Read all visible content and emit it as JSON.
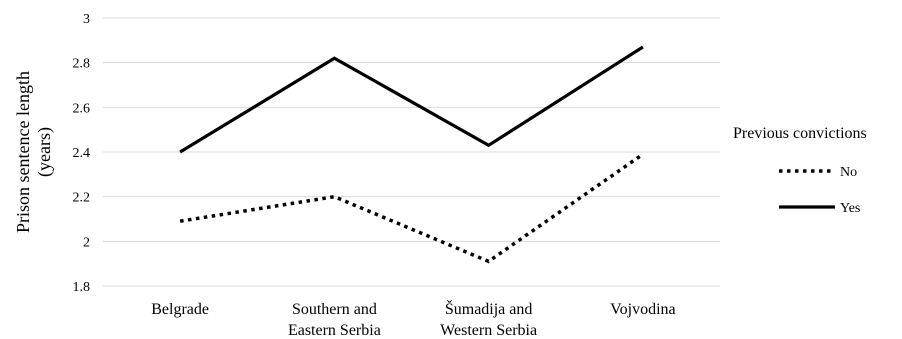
{
  "chart_data": {
    "type": "line",
    "title": "",
    "xlabel": "",
    "ylabel": "Prison sentence length (years)",
    "ylabel_lines": [
      "Prison sentence length",
      "(years)"
    ],
    "ylim": [
      1.8,
      3
    ],
    "yticks": [
      "1.8",
      "2",
      "2.2",
      "2.4",
      "2.6",
      "2.8",
      "3"
    ],
    "grid": true,
    "categories": [
      [
        "Belgrade"
      ],
      [
        "Southern and",
        "Eastern Serbia"
      ],
      [
        "Šumadija and",
        "Western Serbia"
      ],
      [
        "Vojvodina"
      ]
    ],
    "legend": {
      "title": "Previous convictions",
      "position": "right"
    },
    "series": [
      {
        "name": "No",
        "values": [
          2.09,
          2.2,
          1.91,
          2.39
        ],
        "style": "dotted",
        "color": "#000000"
      },
      {
        "name": "Yes",
        "values": [
          2.4,
          2.82,
          2.43,
          2.87
        ],
        "style": "solid",
        "color": "#000000"
      }
    ],
    "colors": {
      "grid": "#d9d9d9",
      "line": "#000000"
    }
  }
}
